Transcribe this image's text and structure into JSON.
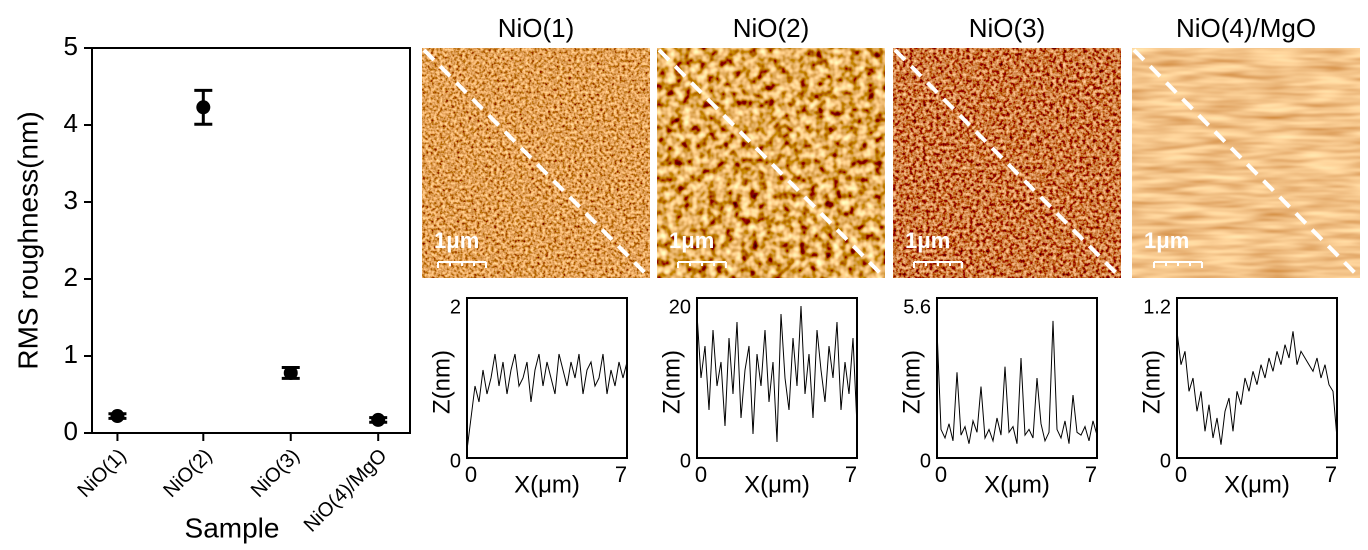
{
  "chart_data": [
    {
      "type": "errorbar",
      "categories": [
        "NiO(1)",
        "NiO(2)",
        "NiO(3)",
        "NiO(4)/MgO"
      ],
      "values": [
        0.22,
        4.23,
        0.78,
        0.17
      ],
      "errors": [
        0.03,
        0.22,
        0.07,
        0.03
      ],
      "color": "#000000",
      "xlabel": "Sample",
      "ylabel": "RMS roughness(nm)",
      "ylim": [
        0,
        5
      ],
      "yticks": [
        0,
        1,
        2,
        3,
        4,
        5
      ]
    },
    {
      "type": "line",
      "title": "NiO(1)",
      "scale_label": "1μm",
      "xlabel": "X(μm)",
      "ylabel": "Z(nm)",
      "color": "#000000",
      "xlim": [
        0,
        7
      ],
      "xticks": [
        0,
        7
      ],
      "ylim": [
        0,
        2
      ],
      "yticks": [
        0,
        2
      ],
      "x": [
        0,
        0.175,
        0.35,
        0.525,
        0.7,
        0.875,
        1.05,
        1.225,
        1.4,
        1.575,
        1.75,
        1.925,
        2.1,
        2.275,
        2.45,
        2.625,
        2.8,
        2.975,
        3.15,
        3.325,
        3.5,
        3.675,
        3.85,
        4.025,
        4.2,
        4.375,
        4.55,
        4.725,
        4.9,
        5.075,
        5.25,
        5.425,
        5.6,
        5.775,
        5.95,
        6.125,
        6.3,
        6.475,
        6.65,
        6.825,
        7
      ],
      "values": [
        0.1,
        0.5,
        0.9,
        0.7,
        1.1,
        0.8,
        1.0,
        1.3,
        0.9,
        1.2,
        0.8,
        1.1,
        1.3,
        0.9,
        1.0,
        1.2,
        0.7,
        1.1,
        1.3,
        0.9,
        1.2,
        1.0,
        0.8,
        1.3,
        1.1,
        0.9,
        1.2,
        1.0,
        1.3,
        0.8,
        1.1,
        1.2,
        0.9,
        1.0,
        1.3,
        0.8,
        1.1,
        0.9,
        1.2,
        1.0,
        1.2
      ]
    },
    {
      "type": "line",
      "title": "NiO(2)",
      "scale_label": "1μm",
      "xlabel": "X(μm)",
      "ylabel": "Z(nm)",
      "color": "#000000",
      "xlim": [
        0,
        7
      ],
      "xticks": [
        0,
        7
      ],
      "ylim": [
        0,
        20
      ],
      "yticks": [
        0,
        20
      ],
      "x": [
        0,
        0.175,
        0.35,
        0.525,
        0.7,
        0.875,
        1.05,
        1.225,
        1.4,
        1.575,
        1.75,
        1.925,
        2.1,
        2.275,
        2.45,
        2.625,
        2.8,
        2.975,
        3.15,
        3.325,
        3.5,
        3.675,
        3.85,
        4.025,
        4.2,
        4.375,
        4.55,
        4.725,
        4.9,
        5.075,
        5.25,
        5.425,
        5.6,
        5.775,
        5.95,
        6.125,
        6.3,
        6.475,
        6.65,
        6.825,
        7
      ],
      "values": [
        18,
        10,
        14,
        6,
        16,
        9,
        12,
        4,
        15,
        8,
        17,
        5,
        11,
        14,
        3,
        13,
        9,
        16,
        7,
        12,
        2,
        18,
        10,
        6,
        15,
        9,
        19,
        8,
        13,
        5,
        16,
        11,
        7,
        14,
        10,
        17,
        6,
        12,
        8,
        15,
        4
      ]
    },
    {
      "type": "line",
      "title": "NiO(3)",
      "scale_label": "1μm",
      "xlabel": "X(μm)",
      "ylabel": "Z(nm)",
      "color": "#000000",
      "xlim": [
        0,
        7
      ],
      "xticks": [
        0,
        7
      ],
      "ylim": [
        0,
        5.6
      ],
      "yticks": [
        0,
        5.6
      ],
      "x": [
        0,
        0.175,
        0.35,
        0.525,
        0.7,
        0.875,
        1.05,
        1.225,
        1.4,
        1.575,
        1.75,
        1.925,
        2.1,
        2.275,
        2.45,
        2.625,
        2.8,
        2.975,
        3.15,
        3.325,
        3.5,
        3.675,
        3.85,
        4.025,
        4.2,
        4.375,
        4.55,
        4.725,
        4.9,
        5.075,
        5.25,
        5.425,
        5.6,
        5.775,
        5.95,
        6.125,
        6.3,
        6.475,
        6.65,
        6.825,
        7
      ],
      "values": [
        4.5,
        1.0,
        0.7,
        1.2,
        0.6,
        3.0,
        0.8,
        1.1,
        0.5,
        1.3,
        0.9,
        2.5,
        0.7,
        1.0,
        0.6,
        1.4,
        0.8,
        3.2,
        0.9,
        1.1,
        0.5,
        3.5,
        0.8,
        1.0,
        0.7,
        2.8,
        1.2,
        0.6,
        0.9,
        4.8,
        1.0,
        0.7,
        1.3,
        0.5,
        2.2,
        0.9,
        0.8,
        1.1,
        0.6,
        1.3,
        0.8
      ]
    },
    {
      "type": "line",
      "title": "NiO(4)/MgO",
      "scale_label": "1μm",
      "xlabel": "X(μm)",
      "ylabel": "Z(nm)",
      "color": "#000000",
      "xlim": [
        0,
        7
      ],
      "xticks": [
        0,
        7
      ],
      "ylim": [
        0,
        1.2
      ],
      "yticks": [
        0,
        1.2
      ],
      "x": [
        0,
        0.175,
        0.35,
        0.525,
        0.7,
        0.875,
        1.05,
        1.225,
        1.4,
        1.575,
        1.75,
        1.925,
        2.1,
        2.275,
        2.45,
        2.625,
        2.8,
        2.975,
        3.15,
        3.325,
        3.5,
        3.675,
        3.85,
        4.025,
        4.2,
        4.375,
        4.55,
        4.725,
        4.9,
        5.075,
        5.25,
        5.425,
        5.6,
        5.775,
        5.95,
        6.125,
        6.3,
        6.475,
        6.65,
        6.825,
        7
      ],
      "values": [
        0.95,
        0.7,
        0.8,
        0.5,
        0.6,
        0.35,
        0.5,
        0.2,
        0.4,
        0.15,
        0.3,
        0.1,
        0.35,
        0.45,
        0.2,
        0.5,
        0.4,
        0.6,
        0.5,
        0.65,
        0.55,
        0.7,
        0.6,
        0.75,
        0.65,
        0.8,
        0.7,
        0.85,
        0.75,
        0.95,
        0.7,
        0.8,
        0.75,
        0.7,
        0.65,
        0.75,
        0.6,
        0.7,
        0.55,
        0.5,
        0.15
      ]
    }
  ]
}
